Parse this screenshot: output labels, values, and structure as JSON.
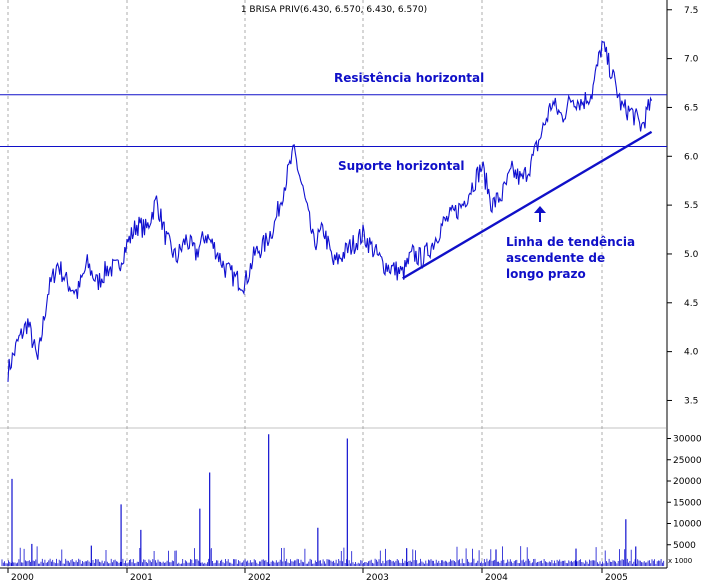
{
  "chart_data": {
    "type": "line",
    "title": "1 BRISA PRIV(6.430, 6.570, 6.430, 6.570)",
    "x_tick_labels": [
      "2000",
      "2001",
      "2002",
      "2003",
      "2004",
      "2005"
    ],
    "price_axis": {
      "ylim": [
        3.3,
        7.6
      ],
      "ticks": [
        "3.5",
        "4.0",
        "4.5",
        "5.0",
        "5.5",
        "6.0",
        "6.5",
        "7.0",
        "7.5"
      ]
    },
    "volume_axis": {
      "ylim": [
        0,
        32000
      ],
      "ticks": [
        "5000",
        "10000",
        "15000",
        "20000",
        "25000",
        "30000"
      ],
      "unit_label": "x 1000"
    },
    "grid": "vertical dashed at year starts",
    "price_series": {
      "color": "#1010d0",
      "points": [
        [
          "2000-01",
          3.8
        ],
        [
          "2000-02",
          4.1
        ],
        [
          "2000-03",
          4.3
        ],
        [
          "2000-04",
          3.9
        ],
        [
          "2000-05",
          4.6
        ],
        [
          "2000-06",
          4.9
        ],
        [
          "2000-07",
          4.7
        ],
        [
          "2000-08",
          4.6
        ],
        [
          "2000-09",
          4.9
        ],
        [
          "2000-10",
          4.7
        ],
        [
          "2000-11",
          4.85
        ],
        [
          "2000-12",
          4.85
        ],
        [
          "2001-01",
          5.1
        ],
        [
          "2001-02",
          5.3
        ],
        [
          "2001-03",
          5.25
        ],
        [
          "2001-04",
          5.55
        ],
        [
          "2001-05",
          5.15
        ],
        [
          "2001-06",
          4.95
        ],
        [
          "2001-07",
          5.15
        ],
        [
          "2001-08",
          5.0
        ],
        [
          "2001-09",
          5.2
        ],
        [
          "2001-10",
          5.05
        ],
        [
          "2001-11",
          4.85
        ],
        [
          "2001-12",
          4.75
        ],
        [
          "2002-01",
          4.7
        ],
        [
          "2002-02",
          5.0
        ],
        [
          "2002-03",
          5.1
        ],
        [
          "2002-04",
          5.3
        ],
        [
          "2002-05",
          5.7
        ],
        [
          "2002-06",
          6.05
        ],
        [
          "2002-07",
          5.6
        ],
        [
          "2002-08",
          5.1
        ],
        [
          "2002-09",
          5.25
        ],
        [
          "2002-10",
          4.9
        ],
        [
          "2002-11",
          5.0
        ],
        [
          "2002-12",
          5.1
        ],
        [
          "2003-01",
          5.2
        ],
        [
          "2003-02",
          5.05
        ],
        [
          "2003-03",
          4.9
        ],
        [
          "2003-04",
          4.85
        ],
        [
          "2003-05",
          4.8
        ],
        [
          "2003-06",
          5.0
        ],
        [
          "2003-07",
          4.95
        ],
        [
          "2003-08",
          5.1
        ],
        [
          "2003-09",
          5.3
        ],
        [
          "2003-10",
          5.4
        ],
        [
          "2003-11",
          5.5
        ],
        [
          "2003-12",
          5.7
        ],
        [
          "2004-01",
          5.9
        ],
        [
          "2004-02",
          5.5
        ],
        [
          "2004-03",
          5.6
        ],
        [
          "2004-04",
          5.85
        ],
        [
          "2004-05",
          5.75
        ],
        [
          "2004-06",
          5.95
        ],
        [
          "2004-07",
          6.25
        ],
        [
          "2004-08",
          6.55
        ],
        [
          "2004-09",
          6.4
        ],
        [
          "2004-10",
          6.6
        ],
        [
          "2004-11",
          6.55
        ],
        [
          "2004-12",
          6.65
        ],
        [
          "2005-01",
          7.15
        ],
        [
          "2005-02",
          6.85
        ],
        [
          "2005-03",
          6.5
        ],
        [
          "2005-04",
          6.45
        ],
        [
          "2005-05",
          6.3
        ],
        [
          "2005-06",
          6.57
        ]
      ]
    },
    "volume_series": {
      "color": "#1010d0",
      "spikes": [
        [
          "2000-01",
          20500
        ],
        [
          "2000-03",
          5200
        ],
        [
          "2000-09",
          4800
        ],
        [
          "2000-12",
          14500
        ],
        [
          "2001-02",
          8500
        ],
        [
          "2001-08",
          13500
        ],
        [
          "2001-09",
          22000
        ],
        [
          "2002-03",
          31000
        ],
        [
          "2002-08",
          9000
        ],
        [
          "2002-11",
          30000
        ],
        [
          "2003-05",
          4200
        ],
        [
          "2004-02",
          3900
        ],
        [
          "2004-10",
          4100
        ],
        [
          "2005-03",
          11000
        ],
        [
          "2005-04",
          4600
        ]
      ]
    },
    "annotations": [
      {
        "text": "Resistência horizontal",
        "line_value": 6.63
      },
      {
        "text": "Suporte horizontal",
        "line_value": 6.1
      },
      {
        "text": "Linha de tendência",
        "line2": "ascendente de",
        "line3": "longo prazo",
        "trend_from": [
          "2003-05",
          4.75
        ],
        "trend_to": [
          "2005-06",
          6.25
        ]
      }
    ]
  }
}
